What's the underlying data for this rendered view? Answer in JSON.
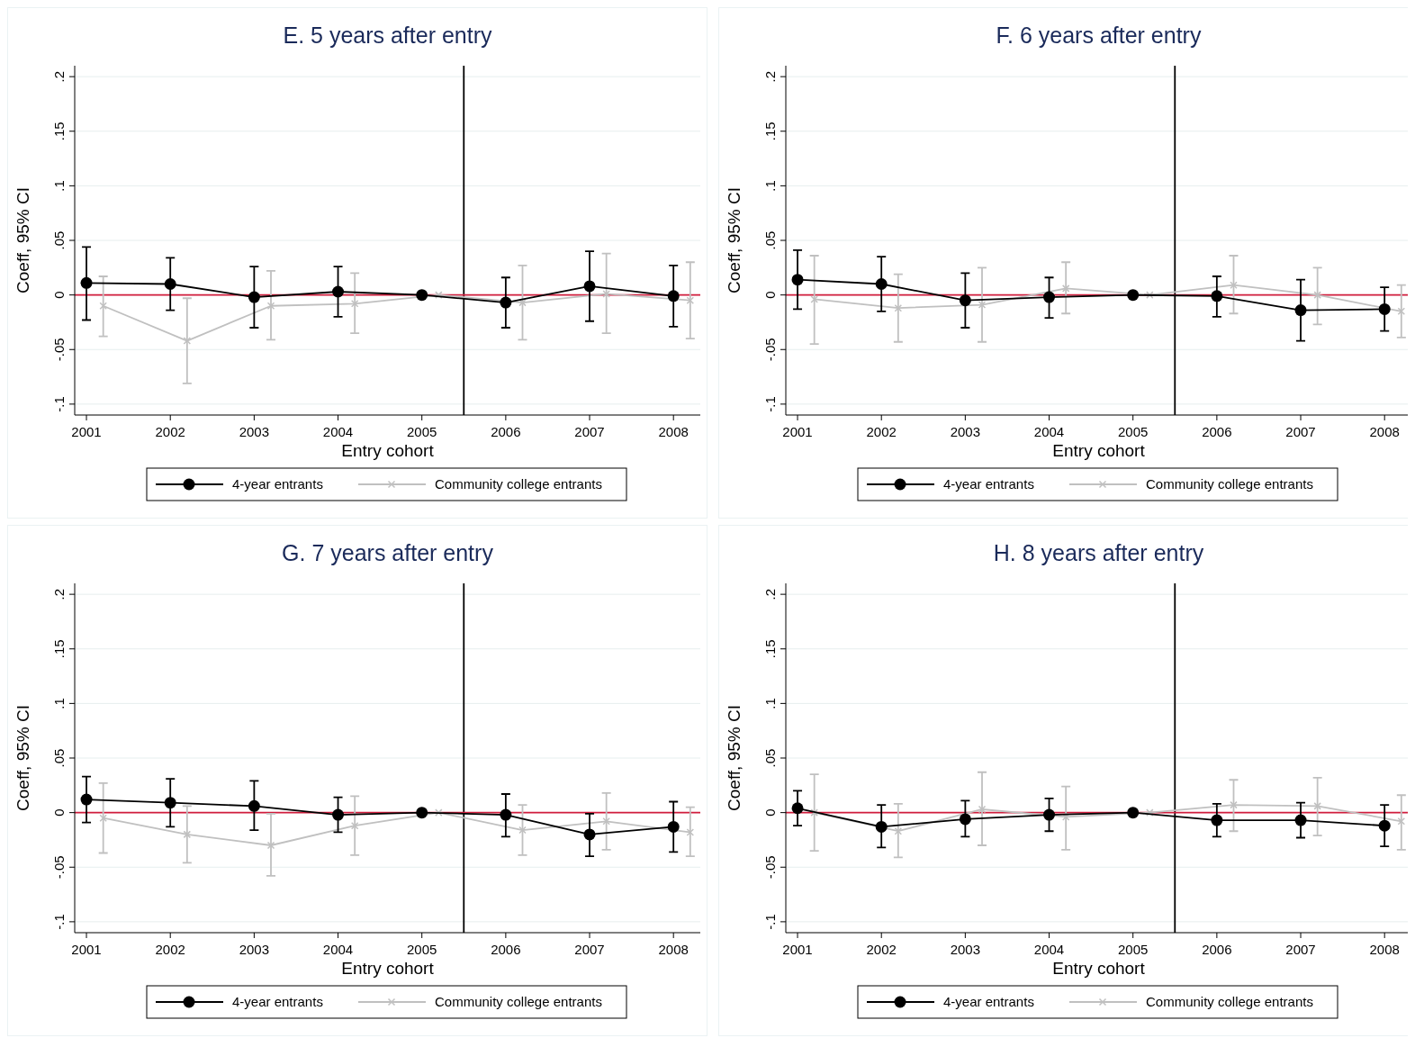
{
  "chart_data": [
    {
      "type": "line",
      "title": "E. 5 years after entry",
      "xlabel": "Entry cohort",
      "ylabel": "Coeff, 95% CI",
      "xlim": [
        2000.86,
        2008.32
      ],
      "ylim": [
        -0.11,
        0.21
      ],
      "xticks": [
        2001,
        2002,
        2003,
        2004,
        2005,
        2006,
        2007,
        2008
      ],
      "yticks": [
        {
          "value": -0.1,
          "label": "-.1"
        },
        {
          "value": -0.05,
          "label": "-.05"
        },
        {
          "value": 0,
          "label": "0"
        },
        {
          "value": 0.05,
          "label": ".05"
        },
        {
          "value": 0.1,
          "label": ".1"
        },
        {
          "value": 0.15,
          "label": ".15"
        },
        {
          "value": 0.2,
          "label": ".2"
        }
      ],
      "grid": "y",
      "legend": "bottom",
      "ref_lines": [
        {
          "axis": "x",
          "value": 2005.5,
          "color": "#000000"
        },
        {
          "axis": "y",
          "value": 0,
          "color": "#d01c3c"
        }
      ],
      "series": [
        {
          "name": "4-year entrants",
          "color": "#000000",
          "marker": "circle",
          "x": [
            2001,
            2002,
            2003,
            2004,
            2005,
            2006,
            2007,
            2008
          ],
          "values": [
            0.011,
            0.01,
            -0.002,
            0.003,
            0,
            -0.007,
            0.008,
            -0.001
          ],
          "errors": [
            [
              -0.023,
              0.044
            ],
            [
              -0.014,
              0.034
            ],
            [
              -0.03,
              0.026
            ],
            [
              -0.02,
              0.026
            ],
            null,
            [
              -0.03,
              0.016
            ],
            [
              -0.024,
              0.04
            ],
            [
              -0.029,
              0.027
            ]
          ]
        },
        {
          "name": "Community college entrants",
          "color": "#c0c0c0",
          "marker": "cross",
          "x": [
            2001.2,
            2002.2,
            2003.2,
            2004.2,
            2005.2,
            2006.2,
            2007.2,
            2008.2
          ],
          "values": [
            -0.01,
            -0.042,
            -0.01,
            -0.008,
            0,
            -0.007,
            0.001,
            -0.005
          ],
          "errors": [
            [
              -0.038,
              0.017
            ],
            [
              -0.081,
              -0.003
            ],
            [
              -0.041,
              0.022
            ],
            [
              -0.035,
              0.02
            ],
            null,
            [
              -0.041,
              0.027
            ],
            [
              -0.035,
              0.038
            ],
            [
              -0.04,
              0.03
            ]
          ]
        }
      ]
    },
    {
      "type": "line",
      "title": "F. 6 years after entry",
      "xlabel": "Entry cohort",
      "ylabel": "Coeff, 95% CI",
      "xlim": [
        2000.86,
        2008.32
      ],
      "ylim": [
        -0.11,
        0.21
      ],
      "xticks": [
        2001,
        2002,
        2003,
        2004,
        2005,
        2006,
        2007,
        2008
      ],
      "yticks": [
        {
          "value": -0.1,
          "label": "-.1"
        },
        {
          "value": -0.05,
          "label": "-.05"
        },
        {
          "value": 0,
          "label": "0"
        },
        {
          "value": 0.05,
          "label": ".05"
        },
        {
          "value": 0.1,
          "label": ".1"
        },
        {
          "value": 0.15,
          "label": ".15"
        },
        {
          "value": 0.2,
          "label": ".2"
        }
      ],
      "grid": "y",
      "legend": "bottom",
      "ref_lines": [
        {
          "axis": "x",
          "value": 2005.5,
          "color": "#000000"
        },
        {
          "axis": "y",
          "value": 0,
          "color": "#d01c3c"
        }
      ],
      "series": [
        {
          "name": "4-year entrants",
          "color": "#000000",
          "marker": "circle",
          "x": [
            2001,
            2002,
            2003,
            2004,
            2005,
            2006,
            2007,
            2008
          ],
          "values": [
            0.014,
            0.01,
            -0.005,
            -0.002,
            0,
            -0.001,
            -0.014,
            -0.013
          ],
          "errors": [
            [
              -0.013,
              0.041
            ],
            [
              -0.015,
              0.035
            ],
            [
              -0.03,
              0.02
            ],
            [
              -0.021,
              0.016
            ],
            null,
            [
              -0.02,
              0.017
            ],
            [
              -0.042,
              0.014
            ],
            [
              -0.033,
              0.007
            ]
          ]
        },
        {
          "name": "Community college entrants",
          "color": "#c0c0c0",
          "marker": "cross",
          "x": [
            2001.2,
            2002.2,
            2003.2,
            2004.2,
            2005.2,
            2006.2,
            2007.2,
            2008.2
          ],
          "values": [
            -0.004,
            -0.012,
            -0.009,
            0.006,
            0,
            0.009,
            0,
            -0.015
          ],
          "errors": [
            [
              -0.045,
              0.036
            ],
            [
              -0.043,
              0.019
            ],
            [
              -0.043,
              0.025
            ],
            [
              -0.017,
              0.03
            ],
            null,
            [
              -0.017,
              0.036
            ],
            [
              -0.027,
              0.025
            ],
            [
              -0.039,
              0.009
            ]
          ]
        }
      ]
    },
    {
      "type": "line",
      "title": "G. 7 years after entry",
      "xlabel": "Entry cohort",
      "ylabel": "Coeff, 95% CI",
      "xlim": [
        2000.86,
        2008.32
      ],
      "ylim": [
        -0.11,
        0.21
      ],
      "xticks": [
        2001,
        2002,
        2003,
        2004,
        2005,
        2006,
        2007,
        2008
      ],
      "yticks": [
        {
          "value": -0.1,
          "label": "-.1"
        },
        {
          "value": -0.05,
          "label": "-.05"
        },
        {
          "value": 0,
          "label": "0"
        },
        {
          "value": 0.05,
          "label": ".05"
        },
        {
          "value": 0.1,
          "label": ".1"
        },
        {
          "value": 0.15,
          "label": ".15"
        },
        {
          "value": 0.2,
          "label": ".2"
        }
      ],
      "grid": "y",
      "legend": "bottom",
      "ref_lines": [
        {
          "axis": "x",
          "value": 2005.5,
          "color": "#000000"
        },
        {
          "axis": "y",
          "value": 0,
          "color": "#d01c3c"
        }
      ],
      "series": [
        {
          "name": "4-year entrants",
          "color": "#000000",
          "marker": "circle",
          "x": [
            2001,
            2002,
            2003,
            2004,
            2005,
            2006,
            2007,
            2008
          ],
          "values": [
            0.012,
            0.009,
            0.006,
            -0.002,
            0,
            -0.002,
            -0.02,
            -0.013
          ],
          "errors": [
            [
              -0.009,
              0.033
            ],
            [
              -0.013,
              0.031
            ],
            [
              -0.016,
              0.029
            ],
            [
              -0.018,
              0.014
            ],
            null,
            [
              -0.022,
              0.017
            ],
            [
              -0.04,
              -0.001
            ],
            [
              -0.036,
              0.01
            ]
          ]
        },
        {
          "name": "Community college entrants",
          "color": "#c0c0c0",
          "marker": "cross",
          "x": [
            2001.2,
            2002.2,
            2003.2,
            2004.2,
            2005.2,
            2006.2,
            2007.2,
            2008.2
          ],
          "values": [
            -0.005,
            -0.02,
            -0.03,
            -0.012,
            0,
            -0.016,
            -0.008,
            -0.018
          ],
          "errors": [
            [
              -0.037,
              0.027
            ],
            [
              -0.046,
              0.006
            ],
            [
              -0.058,
              -0.001
            ],
            [
              -0.039,
              0.015
            ],
            null,
            [
              -0.039,
              0.007
            ],
            [
              -0.034,
              0.018
            ],
            [
              -0.04,
              0.005
            ]
          ]
        }
      ]
    },
    {
      "type": "line",
      "title": "H. 8 years after entry",
      "xlabel": "Entry cohort",
      "ylabel": "Coeff, 95% CI",
      "xlim": [
        2000.86,
        2008.32
      ],
      "ylim": [
        -0.11,
        0.21
      ],
      "xticks": [
        2001,
        2002,
        2003,
        2004,
        2005,
        2006,
        2007,
        2008
      ],
      "yticks": [
        {
          "value": -0.1,
          "label": "-.1"
        },
        {
          "value": -0.05,
          "label": "-.05"
        },
        {
          "value": 0,
          "label": "0"
        },
        {
          "value": 0.05,
          "label": ".05"
        },
        {
          "value": 0.1,
          "label": ".1"
        },
        {
          "value": 0.15,
          "label": ".15"
        },
        {
          "value": 0.2,
          "label": ".2"
        }
      ],
      "grid": "y",
      "legend": "bottom",
      "ref_lines": [
        {
          "axis": "x",
          "value": 2005.5,
          "color": "#000000"
        },
        {
          "axis": "y",
          "value": 0,
          "color": "#d01c3c"
        }
      ],
      "series": [
        {
          "name": "4-year entrants",
          "color": "#000000",
          "marker": "circle",
          "x": [
            2001,
            2002,
            2003,
            2004,
            2005,
            2006,
            2007,
            2008
          ],
          "values": [
            0.004,
            -0.013,
            -0.006,
            -0.002,
            0,
            -0.007,
            -0.007,
            -0.012
          ],
          "errors": [
            [
              -0.012,
              0.02
            ],
            [
              -0.032,
              0.007
            ],
            [
              -0.022,
              0.011
            ],
            [
              -0.017,
              0.013
            ],
            null,
            [
              -0.022,
              0.008
            ],
            [
              -0.023,
              0.009
            ],
            [
              -0.031,
              0.007
            ]
          ]
        },
        {
          "name": "Community college entrants",
          "color": "#c0c0c0",
          "marker": "cross",
          "x": [
            2001.2,
            2002.2,
            2003.2,
            2004.2,
            2005.2,
            2006.2,
            2007.2,
            2008.2
          ],
          "values": [
            0,
            -0.017,
            0.003,
            -0.004,
            0,
            0.007,
            0.006,
            -0.008
          ],
          "errors": [
            [
              -0.035,
              0.035
            ],
            [
              -0.041,
              0.008
            ],
            [
              -0.03,
              0.037
            ],
            [
              -0.034,
              0.024
            ],
            null,
            [
              -0.017,
              0.03
            ],
            [
              -0.021,
              0.032
            ],
            [
              -0.034,
              0.016
            ]
          ]
        }
      ]
    }
  ]
}
